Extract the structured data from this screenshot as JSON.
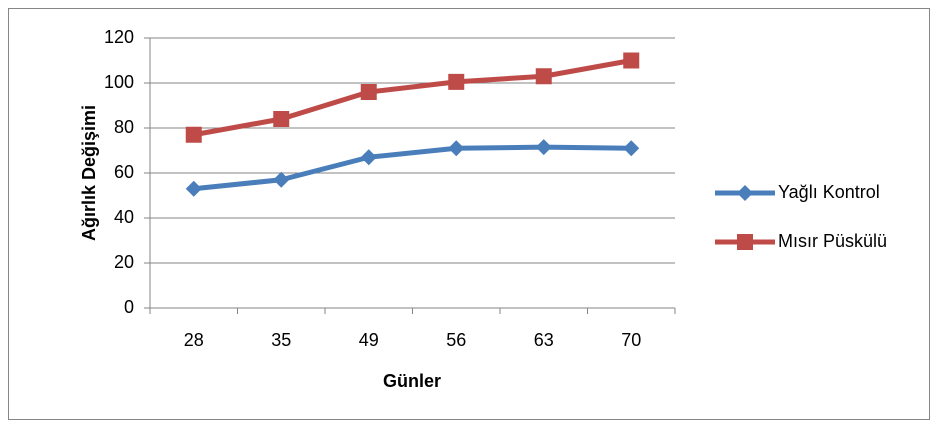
{
  "chart_data": {
    "type": "line",
    "x_label": "Günler",
    "y_label": "Ağırlık Değişimi",
    "categories": [
      "28",
      "35",
      "49",
      "56",
      "63",
      "70"
    ],
    "series": [
      {
        "name": "Yağlı Kontrol",
        "color": "#4a7ebb",
        "marker": "diamond",
        "values": [
          53,
          57,
          67,
          71,
          71.5,
          71
        ]
      },
      {
        "name": "Mısır Püskülü",
        "color": "#be4b48",
        "marker": "square",
        "values": [
          77,
          84,
          96,
          100.5,
          103,
          110
        ]
      }
    ],
    "ylim": [
      0,
      120
    ],
    "yticks": [
      0,
      20,
      40,
      60,
      80,
      100,
      120
    ],
    "grid": true,
    "legend": "right"
  }
}
